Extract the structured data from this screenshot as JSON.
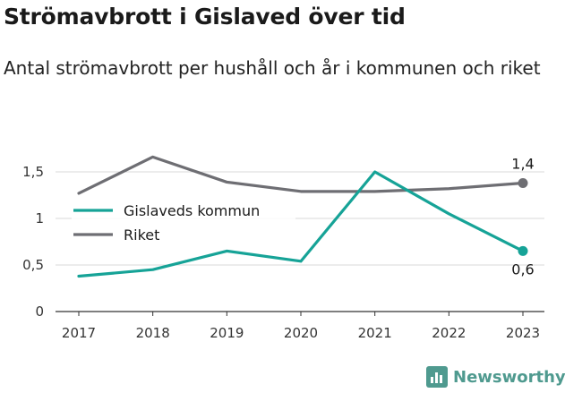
{
  "header": {
    "title": "Strömavbrott i Gislaved över tid",
    "subtitle": "Antal strömavbrott per hushåll och år i kommunen och riket"
  },
  "chart_data": {
    "type": "line",
    "x": [
      "2017",
      "2018",
      "2019",
      "2020",
      "2021",
      "2022",
      "2023"
    ],
    "series": [
      {
        "name": "Gislaveds kommun",
        "color": "#16a397",
        "values": [
          0.38,
          0.45,
          0.65,
          0.54,
          1.5,
          1.05,
          0.65
        ],
        "end_label": "0,6"
      },
      {
        "name": "Riket",
        "color": "#6e6e73",
        "values": [
          1.27,
          1.66,
          1.39,
          1.29,
          1.29,
          1.32,
          1.38
        ],
        "end_label": "1,4"
      }
    ],
    "y_ticks": [
      {
        "value": 0,
        "label": "0"
      },
      {
        "value": 0.5,
        "label": "0,5"
      },
      {
        "value": 1,
        "label": "1"
      },
      {
        "value": 1.5,
        "label": "1,5"
      }
    ],
    "ylim": [
      0,
      1.6
    ],
    "grid": true,
    "legend_position": "left"
  },
  "branding": {
    "name": "Newsworthy",
    "icon": "bar-chart-icon",
    "color": "#4f9a8f"
  }
}
